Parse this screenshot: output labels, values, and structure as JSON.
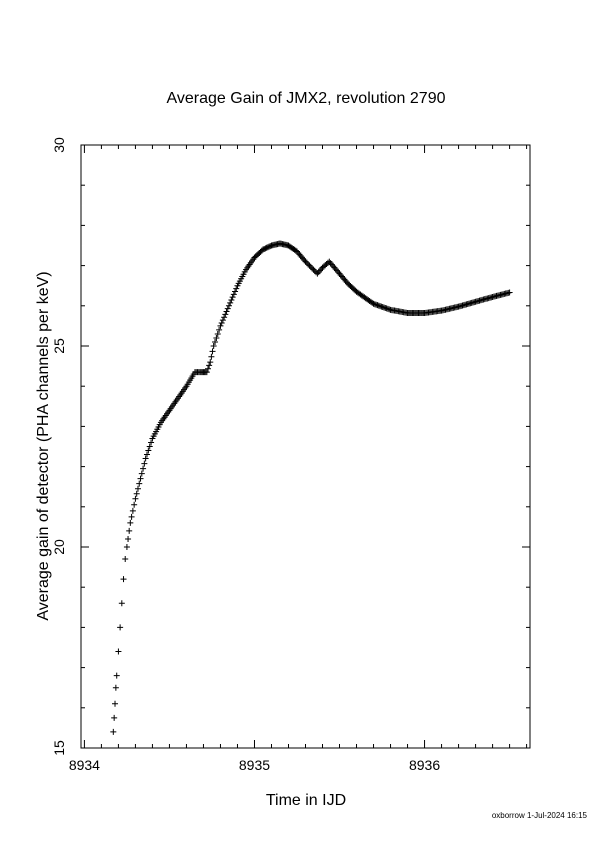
{
  "chart_data": {
    "type": "scatter",
    "title": "Average Gain of JMX2, revolution 2790",
    "xlabel": "Time in IJD",
    "ylabel": "Average gain of detector (PHA channels per keV)",
    "xlim": [
      8933.98,
      8936.62
    ],
    "ylim": [
      15,
      30
    ],
    "x_ticks": [
      8934,
      8935,
      8936
    ],
    "y_ticks": [
      15,
      20,
      25,
      30
    ],
    "marker": "plus",
    "grid": false,
    "legend": "none",
    "series": [
      {
        "x": [
          8934.17,
          8934.175,
          8934.18,
          8934.185,
          8934.19,
          8934.2,
          8934.21,
          8934.22,
          8934.23,
          8934.24,
          8934.25,
          8934.27,
          8934.3,
          8934.33,
          8934.36,
          8934.4,
          8934.45,
          8934.5,
          8934.55,
          8934.6,
          8934.65,
          8934.68,
          8934.7,
          8934.72,
          8934.74,
          8934.76,
          8934.8,
          8934.85,
          8934.9,
          8934.95,
          8935.0,
          8935.05,
          8935.1,
          8935.15,
          8935.2,
          8935.25,
          8935.3,
          8935.37,
          8935.4,
          8935.44,
          8935.5,
          8935.55,
          8935.6,
          8935.7,
          8935.8,
          8935.9,
          8935.95,
          8936.0,
          8936.1,
          8936.2,
          8936.3,
          8936.4,
          8936.5
        ],
        "y": [
          15.4,
          15.75,
          16.1,
          16.5,
          16.8,
          17.4,
          18.0,
          18.6,
          19.2,
          19.7,
          20.0,
          20.6,
          21.2,
          21.7,
          22.2,
          22.7,
          23.1,
          23.4,
          23.7,
          24.0,
          24.35,
          24.35,
          24.35,
          24.35,
          24.6,
          25.0,
          25.5,
          26.0,
          26.5,
          26.9,
          27.2,
          27.4,
          27.5,
          27.55,
          27.5,
          27.35,
          27.1,
          26.8,
          26.95,
          27.1,
          26.8,
          26.55,
          26.35,
          26.05,
          25.9,
          25.82,
          25.82,
          25.82,
          25.88,
          25.98,
          26.1,
          26.22,
          26.33
        ]
      }
    ]
  },
  "footer": {
    "credit": "oxborrow 1-Jul-2024 16:15"
  }
}
